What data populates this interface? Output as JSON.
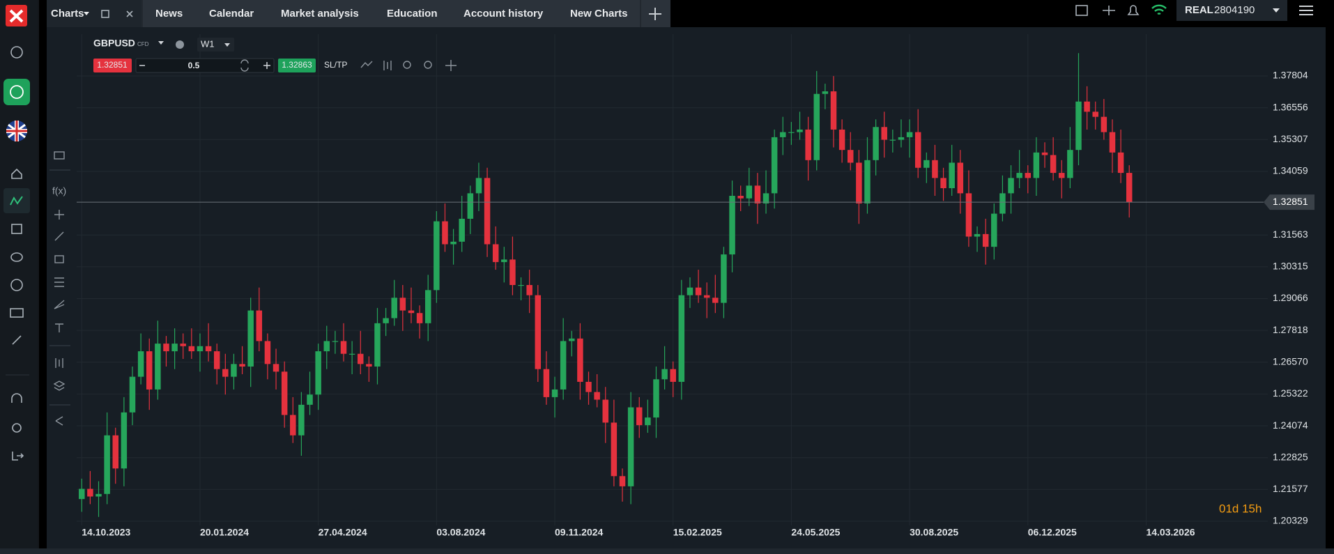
{
  "top_bar": {
    "tabs": [
      "Charts",
      "News",
      "Calendar",
      "Market analysis",
      "Education",
      "Account history",
      "New Charts"
    ],
    "account_type": "REAL",
    "account_number": "2804190"
  },
  "toolbar": {
    "symbol": "GBPUSD",
    "instrument_type": "CFD",
    "timeframe": "W1",
    "sell_price": "1.32851",
    "volume": "0.5",
    "buy_price": "1.32863",
    "sltp": "SL/TP"
  },
  "drawing_tools": {
    "function_label": "f(x)"
  },
  "chart_data": {
    "type": "candlestick",
    "up_color": "#26a65b",
    "down_color": "#e5323e",
    "grid": true,
    "current_price": 1.32851,
    "countdown": "01d 15h",
    "ylim": [
      1.20165,
      1.39445
    ],
    "yticks": [
      1.37804,
      1.36556,
      1.35307,
      1.34059,
      1.31563,
      1.30315,
      1.29066,
      1.27818,
      {
        "value": 1.2657,
        "label": "1.26570"
      },
      1.25322,
      1.24074,
      1.22825,
      1.21577,
      1.20329
    ],
    "xlim": [
      -0.6,
      140.4
    ],
    "xticks": [
      {
        "value": 0,
        "label": "14.10.2023"
      },
      {
        "value": 14,
        "label": "20.01.2024"
      },
      {
        "value": 28,
        "label": "27.04.2024"
      },
      {
        "value": 42,
        "label": "03.08.2024"
      },
      {
        "value": 56,
        "label": "09.11.2024"
      },
      {
        "value": 70,
        "label": "15.02.2025"
      },
      {
        "value": 84,
        "label": "24.05.2025"
      },
      {
        "value": 98,
        "label": "30.08.2025"
      },
      {
        "value": 112,
        "label": "06.12.2025"
      },
      {
        "value": 126,
        "label": "14.03.2026"
      }
    ],
    "ohlc": [
      [
        1.212,
        1.22,
        1.207,
        1.216
      ],
      [
        1.216,
        1.223,
        1.21,
        1.213
      ],
      [
        1.213,
        1.219,
        1.205,
        1.214
      ],
      [
        1.214,
        1.246,
        1.21,
        1.237
      ],
      [
        1.237,
        1.24,
        1.218,
        1.224
      ],
      [
        1.224,
        1.252,
        1.217,
        1.246
      ],
      [
        1.246,
        1.264,
        1.241,
        1.26
      ],
      [
        1.26,
        1.277,
        1.257,
        1.27
      ],
      [
        1.27,
        1.275,
        1.247,
        1.255
      ],
      [
        1.255,
        1.282,
        1.251,
        1.273
      ],
      [
        1.273,
        1.276,
        1.264,
        1.27
      ],
      [
        1.27,
        1.279,
        1.263,
        1.273
      ],
      [
        1.273,
        1.277,
        1.267,
        1.272
      ],
      [
        1.272,
        1.279,
        1.267,
        1.27
      ],
      [
        1.27,
        1.277,
        1.262,
        1.272
      ],
      [
        1.272,
        1.281,
        1.266,
        1.27
      ],
      [
        1.27,
        1.273,
        1.257,
        1.263
      ],
      [
        1.263,
        1.269,
        1.253,
        1.26
      ],
      [
        1.26,
        1.269,
        1.255,
        1.265
      ],
      [
        1.265,
        1.272,
        1.261,
        1.264
      ],
      [
        1.264,
        1.291,
        1.256,
        1.286
      ],
      [
        1.286,
        1.295,
        1.27,
        1.274
      ],
      [
        1.274,
        1.277,
        1.259,
        1.265
      ],
      [
        1.265,
        1.271,
        1.255,
        1.262
      ],
      [
        1.262,
        1.266,
        1.24,
        1.245
      ],
      [
        1.245,
        1.252,
        1.234,
        1.237
      ],
      [
        1.237,
        1.254,
        1.229,
        1.249
      ],
      [
        1.249,
        1.262,
        1.245,
        1.253
      ],
      [
        1.253,
        1.273,
        1.247,
        1.27
      ],
      [
        1.27,
        1.28,
        1.263,
        1.274
      ],
      [
        1.274,
        1.278,
        1.269,
        1.274
      ],
      [
        1.274,
        1.281,
        1.266,
        1.269
      ],
      [
        1.269,
        1.274,
        1.261,
        1.269
      ],
      [
        1.269,
        1.278,
        1.261,
        1.265
      ],
      [
        1.265,
        1.268,
        1.258,
        1.264
      ],
      [
        1.264,
        1.287,
        1.257,
        1.281
      ],
      [
        1.281,
        1.287,
        1.276,
        1.283
      ],
      [
        1.283,
        1.298,
        1.28,
        1.291
      ],
      [
        1.291,
        1.296,
        1.278,
        1.286
      ],
      [
        1.286,
        1.295,
        1.281,
        1.285
      ],
      [
        1.285,
        1.288,
        1.275,
        1.281
      ],
      [
        1.281,
        1.3,
        1.274,
        1.294
      ],
      [
        1.294,
        1.325,
        1.289,
        1.321
      ],
      [
        1.321,
        1.328,
        1.309,
        1.312
      ],
      [
        1.312,
        1.318,
        1.304,
        1.313
      ],
      [
        1.313,
        1.331,
        1.309,
        1.322
      ],
      [
        1.322,
        1.335,
        1.316,
        1.332
      ],
      [
        1.332,
        1.344,
        1.325,
        1.338
      ],
      [
        1.338,
        1.342,
        1.307,
        1.312
      ],
      [
        1.312,
        1.319,
        1.302,
        1.305
      ],
      [
        1.305,
        1.311,
        1.297,
        1.306
      ],
      [
        1.306,
        1.315,
        1.292,
        1.296
      ],
      [
        1.296,
        1.299,
        1.29,
        1.296
      ],
      [
        1.296,
        1.302,
        1.285,
        1.292
      ],
      [
        1.292,
        1.296,
        1.258,
        1.263
      ],
      [
        1.263,
        1.27,
        1.249,
        1.252
      ],
      [
        1.252,
        1.26,
        1.244,
        1.255
      ],
      [
        1.255,
        1.283,
        1.251,
        1.274
      ],
      [
        1.274,
        1.278,
        1.268,
        1.275
      ],
      [
        1.275,
        1.281,
        1.251,
        1.258
      ],
      [
        1.258,
        1.262,
        1.249,
        1.254
      ],
      [
        1.254,
        1.261,
        1.248,
        1.251
      ],
      [
        1.251,
        1.256,
        1.234,
        1.242
      ],
      [
        1.242,
        1.251,
        1.217,
        1.221
      ],
      [
        1.221,
        1.224,
        1.211,
        1.217
      ],
      [
        1.217,
        1.254,
        1.21,
        1.248
      ],
      [
        1.248,
        1.252,
        1.236,
        1.241
      ],
      [
        1.241,
        1.251,
        1.238,
        1.244
      ],
      [
        1.244,
        1.264,
        1.236,
        1.259
      ],
      [
        1.259,
        1.272,
        1.255,
        1.263
      ],
      [
        1.263,
        1.266,
        1.252,
        1.258
      ],
      [
        1.258,
        1.298,
        1.251,
        1.292
      ],
      [
        1.292,
        1.299,
        1.287,
        1.295
      ],
      [
        1.295,
        1.302,
        1.289,
        1.292
      ],
      [
        1.292,
        1.297,
        1.283,
        1.291
      ],
      [
        1.291,
        1.3,
        1.285,
        1.289
      ],
      [
        1.289,
        1.311,
        1.283,
        1.308
      ],
      [
        1.308,
        1.337,
        1.301,
        1.331
      ],
      [
        1.331,
        1.335,
        1.325,
        1.33
      ],
      [
        1.33,
        1.342,
        1.327,
        1.335
      ],
      [
        1.335,
        1.34,
        1.32,
        1.328
      ],
      [
        1.328,
        1.341,
        1.324,
        1.332
      ],
      [
        1.332,
        1.357,
        1.326,
        1.354
      ],
      [
        1.354,
        1.362,
        1.347,
        1.356
      ],
      [
        1.356,
        1.36,
        1.351,
        1.356
      ],
      [
        1.356,
        1.364,
        1.353,
        1.357
      ],
      [
        1.357,
        1.362,
        1.337,
        1.345
      ],
      [
        1.345,
        1.38,
        1.341,
        1.371
      ],
      [
        1.371,
        1.375,
        1.365,
        1.372
      ],
      [
        1.372,
        1.378,
        1.35,
        1.357
      ],
      [
        1.357,
        1.361,
        1.344,
        1.349
      ],
      [
        1.349,
        1.356,
        1.341,
        1.344
      ],
      [
        1.344,
        1.349,
        1.32,
        1.328
      ],
      [
        1.328,
        1.354,
        1.324,
        1.345
      ],
      [
        1.345,
        1.361,
        1.339,
        1.358
      ],
      [
        1.358,
        1.364,
        1.346,
        1.353
      ],
      [
        1.353,
        1.357,
        1.348,
        1.353
      ],
      [
        1.353,
        1.361,
        1.35,
        1.354
      ],
      [
        1.354,
        1.361,
        1.346,
        1.356
      ],
      [
        1.356,
        1.365,
        1.338,
        1.342
      ],
      [
        1.342,
        1.348,
        1.336,
        1.345
      ],
      [
        1.345,
        1.351,
        1.331,
        1.338
      ],
      [
        1.338,
        1.342,
        1.329,
        1.334
      ],
      [
        1.334,
        1.351,
        1.331,
        1.344
      ],
      [
        1.344,
        1.349,
        1.324,
        1.332
      ],
      [
        1.332,
        1.341,
        1.311,
        1.315
      ],
      [
        1.315,
        1.319,
        1.309,
        1.316
      ],
      [
        1.316,
        1.322,
        1.304,
        1.311
      ],
      [
        1.311,
        1.328,
        1.306,
        1.324
      ],
      [
        1.324,
        1.339,
        1.321,
        1.332
      ],
      [
        1.332,
        1.343,
        1.324,
        1.338
      ],
      [
        1.338,
        1.349,
        1.334,
        1.34
      ],
      [
        1.34,
        1.343,
        1.332,
        1.338
      ],
      [
        1.338,
        1.354,
        1.331,
        1.348
      ],
      [
        1.348,
        1.352,
        1.342,
        1.347
      ],
      [
        1.347,
        1.354,
        1.337,
        1.34
      ],
      [
        1.34,
        1.345,
        1.33,
        1.338
      ],
      [
        1.338,
        1.358,
        1.334,
        1.349
      ],
      [
        1.349,
        1.387,
        1.343,
        1.368
      ],
      [
        1.368,
        1.374,
        1.357,
        1.364
      ],
      [
        1.364,
        1.368,
        1.357,
        1.362
      ],
      [
        1.362,
        1.369,
        1.353,
        1.356
      ],
      [
        1.356,
        1.361,
        1.34,
        1.348
      ],
      [
        1.348,
        1.357,
        1.336,
        1.34
      ],
      [
        1.34,
        1.343,
        1.3225,
        1.3285
      ]
    ]
  }
}
